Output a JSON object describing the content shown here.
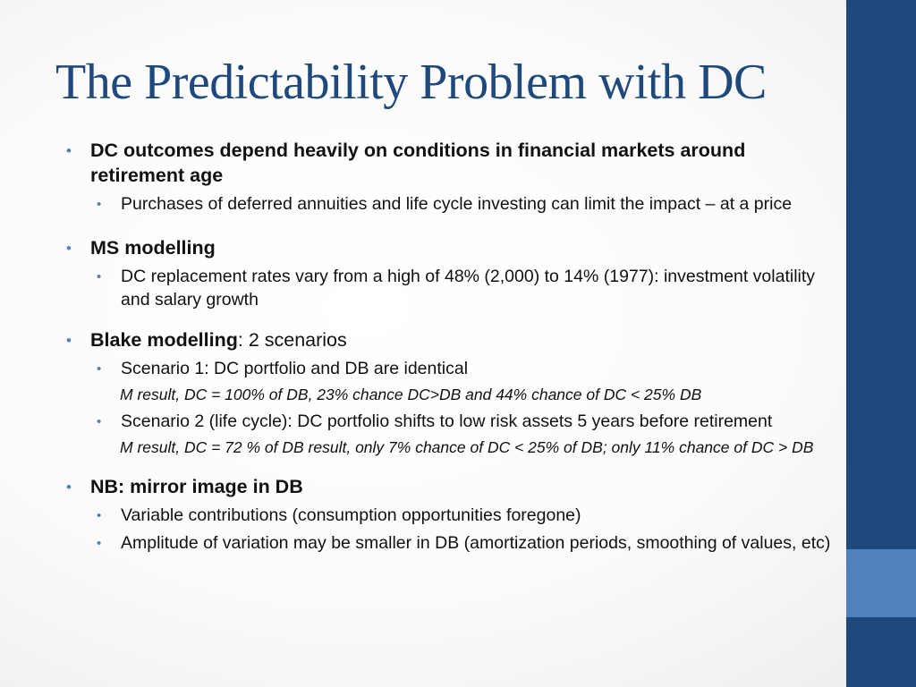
{
  "slide": {
    "title": "The Predictability Problem with DC",
    "bullets": [
      {
        "text": "DC outcomes depend heavily on conditions in financial markets around retirement age",
        "sub": [
          "Purchases of deferred annuities and life cycle investing can limit the impact – at a price"
        ]
      },
      {
        "text": "MS modelling",
        "sub": [
          "DC replacement rates vary from a high of 48% (2,000) to 14% (1977): investment volatility and salary growth"
        ]
      },
      {
        "bold": "Blake modelling",
        "rest": ": 2 scenarios",
        "sub": [
          {
            "text": "Scenario 1: DC portfolio and DB are identical",
            "note": "M result, DC = 100% of DB, 23% chance DC>DB and 44% chance of DC < 25% DB"
          },
          {
            "text": "Scenario 2 (life cycle): DC portfolio shifts to low risk assets 5 years before retirement",
            "note": "M result, DC = 72 % of DB result, only 7% chance of DC < 25% of DB; only 11% chance of DC > DB"
          }
        ]
      },
      {
        "text": "NB: mirror image in DB",
        "sub": [
          "Variable contributions (consumption opportunities foregone)",
          "Amplitude of variation may be smaller in DB (amortization periods, smoothing of values, etc)"
        ]
      }
    ]
  },
  "colors": {
    "title": "#1f497d",
    "bullet": "#4f81bd",
    "sidebar": "#1f497d",
    "sidebar_accent": "#4f81bd"
  }
}
